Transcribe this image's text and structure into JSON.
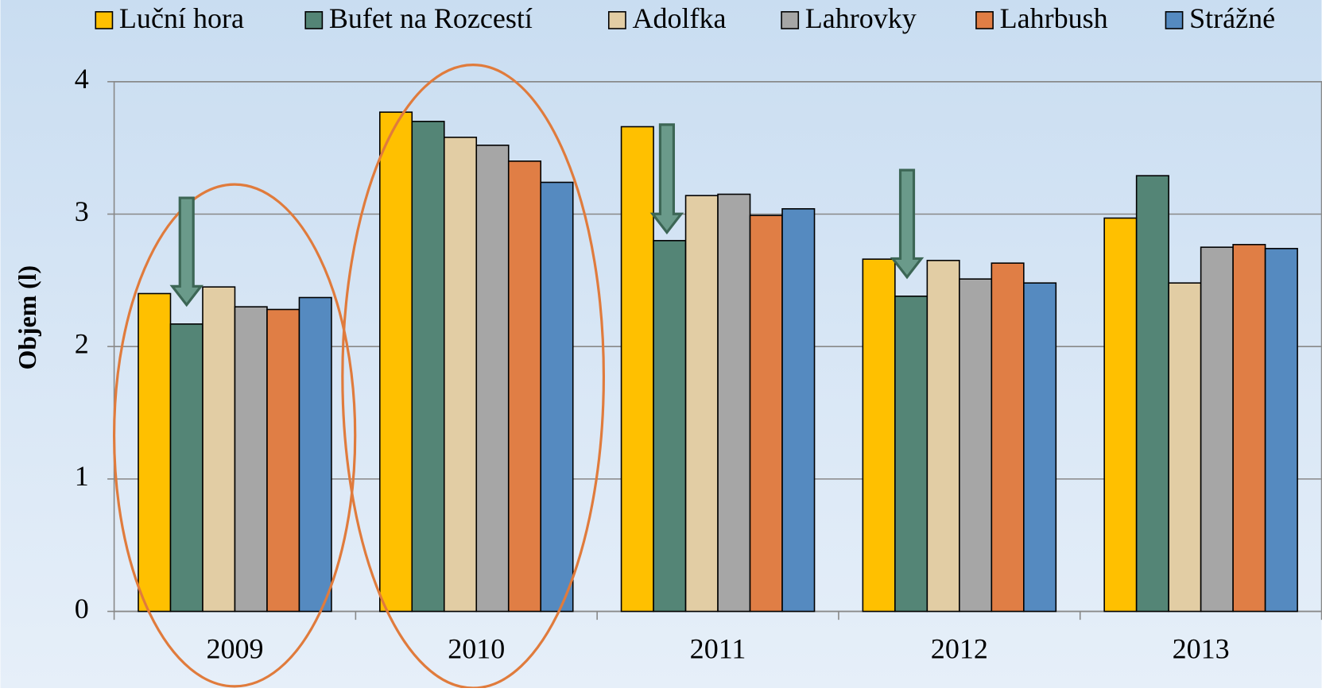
{
  "chart_data": {
    "type": "bar",
    "categories": [
      "2009",
      "2010",
      "2011",
      "2012",
      "2013"
    ],
    "ylabel": "Objem (l)",
    "ylim": [
      0,
      4
    ],
    "yticks": [
      0,
      1,
      2,
      3,
      4
    ],
    "grid": true,
    "legend": "top",
    "series": [
      {
        "name": "Luční hora",
        "color": "#ffc000",
        "values": [
          2.4,
          3.77,
          3.66,
          2.66,
          2.97
        ]
      },
      {
        "name": "Bufet na Rozcestí",
        "color": "#548576",
        "values": [
          2.17,
          3.7,
          2.8,
          2.38,
          3.29
        ]
      },
      {
        "name": "Adolfka",
        "color": "#e2cda4",
        "values": [
          2.45,
          3.58,
          3.14,
          2.65,
          2.48
        ]
      },
      {
        "name": "Lahrovky",
        "color": "#a6a6a6",
        "values": [
          2.3,
          3.52,
          3.15,
          2.51,
          2.75
        ]
      },
      {
        "name": "Lahrbush",
        "color": "#e07e45",
        "values": [
          2.28,
          3.4,
          2.99,
          2.63,
          2.77
        ]
      },
      {
        "name": "Strážné",
        "color": "#558ac0",
        "values": [
          2.37,
          3.24,
          3.04,
          2.48,
          2.74
        ]
      }
    ]
  }
}
